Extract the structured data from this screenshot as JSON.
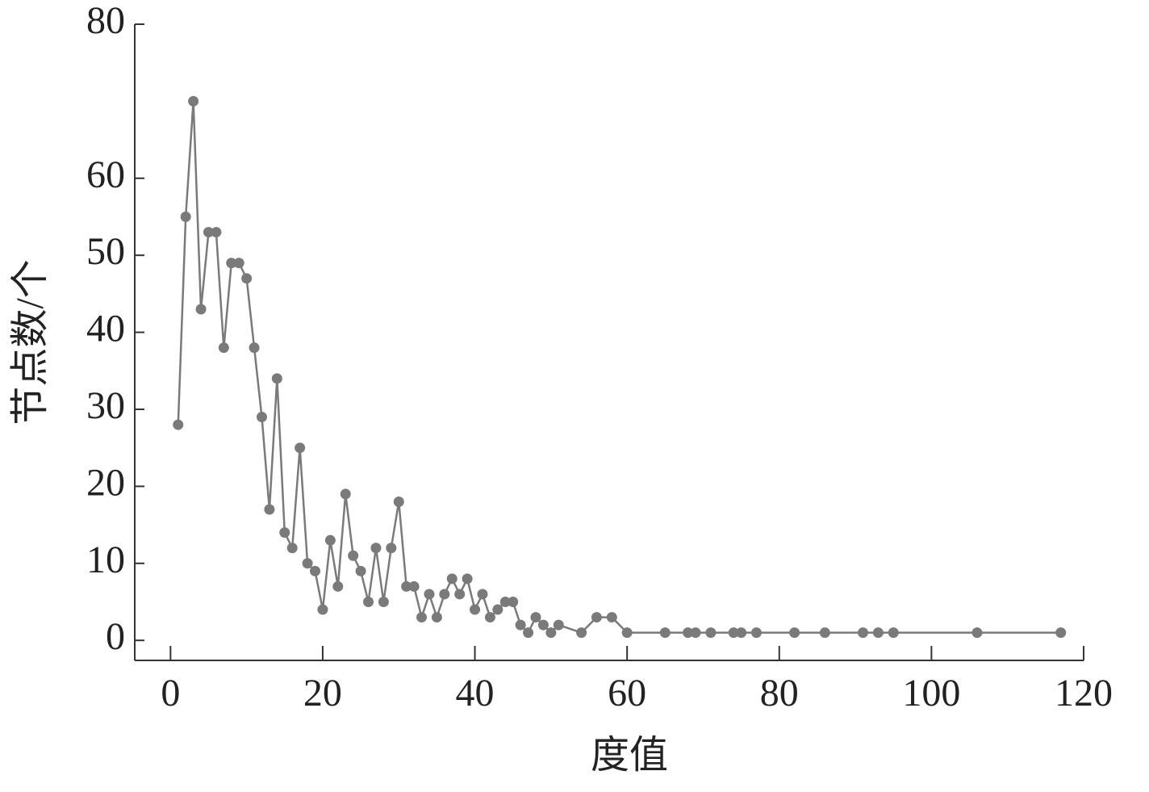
{
  "chart_data": {
    "type": "line",
    "xlabel": "度值",
    "ylabel": "节点数/个",
    "x": [
      1,
      2,
      3,
      4,
      5,
      6,
      7,
      8,
      9,
      10,
      11,
      12,
      13,
      14,
      15,
      16,
      17,
      18,
      19,
      20,
      21,
      22,
      23,
      24,
      25,
      26,
      27,
      28,
      29,
      30,
      31,
      32,
      33,
      34,
      35,
      36,
      37,
      38,
      39,
      40,
      41,
      42,
      43,
      44,
      45,
      46,
      47,
      48,
      49,
      50,
      51,
      54,
      56,
      58,
      60,
      65,
      68,
      69,
      71,
      74,
      75,
      77,
      82,
      86,
      91,
      93,
      95,
      106,
      117
    ],
    "series": [
      {
        "color": "#7a7a7a",
        "values": [
          28,
          55,
          70,
          43,
          53,
          53,
          38,
          49,
          49,
          47,
          38,
          29,
          17,
          34,
          14,
          12,
          25,
          10,
          9,
          4,
          13,
          7,
          19,
          11,
          9,
          5,
          12,
          5,
          12,
          18,
          7,
          7,
          3,
          6,
          3,
          6,
          8,
          6,
          8,
          4,
          6,
          3,
          4,
          5,
          5,
          2,
          1,
          3,
          2,
          1,
          2,
          1,
          3,
          3,
          1,
          1,
          1,
          1,
          1,
          1,
          1,
          1,
          1,
          1,
          1,
          1,
          1,
          1,
          1
        ]
      }
    ],
    "xlim": [
      -4.7,
      120
    ],
    "ylim": [
      -2.6,
      80
    ],
    "xticks": [
      0,
      20,
      40,
      60,
      80,
      100,
      120
    ],
    "yticks": [
      0,
      10,
      20,
      30,
      40,
      50,
      60,
      80
    ]
  }
}
